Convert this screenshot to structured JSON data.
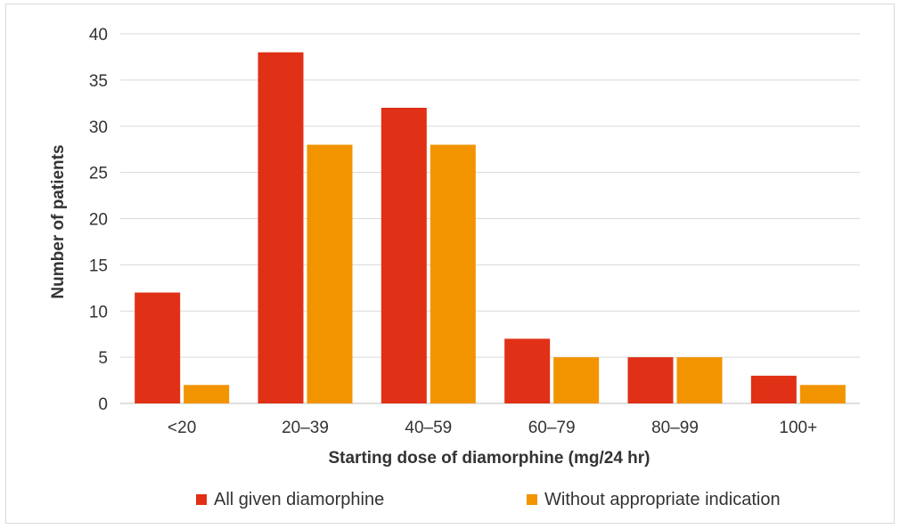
{
  "chart_data": {
    "type": "bar",
    "categories": [
      "<20",
      "20–39",
      "40–59",
      "60–79",
      "80–99",
      "100+"
    ],
    "series": [
      {
        "name": "All given diamorphine",
        "values": [
          12,
          38,
          32,
          7,
          5,
          3
        ],
        "color": "#e03016"
      },
      {
        "name": "Without appropriate indication",
        "values": [
          2,
          28,
          28,
          5,
          5,
          2
        ],
        "color": "#f29400"
      }
    ],
    "title": "",
    "xlabel": "Starting dose of diamorphine (mg/24 hr)",
    "ylabel": "Number of patients",
    "ylim": [
      0,
      40
    ],
    "yticks": [
      0,
      5,
      10,
      15,
      20,
      25,
      30,
      35,
      40
    ],
    "grid": true,
    "legend_position": "bottom"
  }
}
